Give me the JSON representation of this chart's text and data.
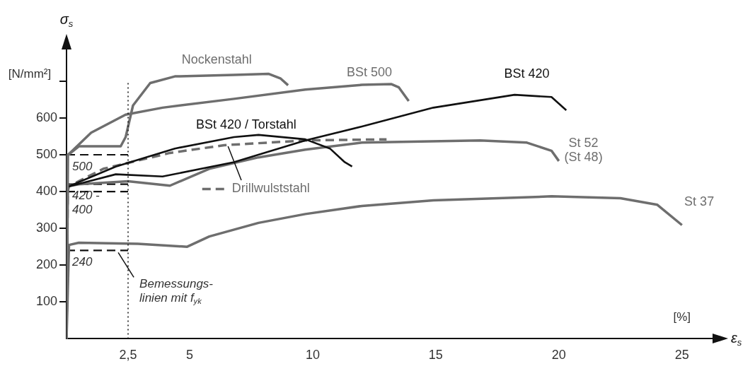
{
  "chart_data": {
    "type": "line",
    "xlabel": "ε$_{s}$",
    "ylabel": "σ$_{s}$",
    "xlim": [
      0,
      26.3
    ],
    "ylim": [
      0,
      790
    ],
    "xticks": [
      {
        "value": 2.5,
        "label": "2,5"
      },
      5,
      10,
      15,
      20,
      25
    ],
    "yticks": [
      100,
      200,
      300,
      400,
      500,
      600,
      {
        "value": 700,
        "label": null
      }
    ],
    "series": [
      {
        "name": "Nockenstahl",
        "color": "#6e6e6e",
        "x": [
          0,
          0.05,
          0.5,
          2.2,
          2.4,
          2.7,
          3.4,
          4.4,
          6.8,
          8.2,
          8.7,
          9
        ],
        "values": [
          0,
          499,
          523,
          523,
          548,
          634,
          695,
          713,
          717,
          720,
          707,
          689
        ]
      },
      {
        "name": "BSt 500",
        "color": "#6e6e6e",
        "x": [
          0,
          0.05,
          1,
          2.4,
          3.9,
          6.8,
          9.7,
          12,
          13.2,
          13.5,
          13.9
        ],
        "values": [
          0,
          499,
          560,
          609,
          628,
          652,
          677,
          690,
          692,
          683,
          646
        ]
      },
      {
        "name": "BSt 420",
        "color": "#111111",
        "x": [
          0,
          0.05,
          2,
          3.9,
          6.8,
          9.7,
          12,
          14.9,
          18.2,
          19.7,
          20.3
        ],
        "values": [
          0,
          413,
          447,
          441,
          480,
          539,
          577,
          628,
          663,
          657,
          621
        ]
      },
      {
        "name": "BSt 420 / Torstahl",
        "color": "#111111",
        "x": [
          0,
          0.05,
          2,
          4.4,
          6.8,
          7.8,
          9.7,
          10.7,
          11.3,
          11.6
        ],
        "values": [
          0,
          413,
          468,
          517,
          548,
          554,
          542,
          517,
          480,
          468
        ]
      },
      {
        "name": "Drillwulststahl",
        "color": "#6e6e6e",
        "line_style": "dashed",
        "x": [
          0,
          0.05,
          1.5,
          4.2,
          6.4,
          9.7,
          13
        ],
        "values": [
          0,
          413,
          462,
          505,
          526,
          539,
          542
        ]
      },
      {
        "name": "St 52\n(St 48)",
        "color": "#6e6e6e",
        "x": [
          0,
          0.05,
          0.1,
          0.5,
          2.5,
          4.2,
          5.8,
          7.8,
          9.7,
          12,
          16.8,
          18.7,
          19.7,
          20
        ],
        "values": [
          0,
          400,
          415,
          420,
          428,
          416,
          462,
          493,
          514,
          533,
          539,
          533,
          511,
          483
        ]
      },
      {
        "name": "St 37",
        "color": "#6e6e6e",
        "x": [
          0,
          0.1,
          0.5,
          2.9,
          4.9,
          5.8,
          7.8,
          9.7,
          12,
          14.9,
          19.7,
          22.5,
          24,
          25
        ],
        "values": [
          0,
          255,
          261,
          258,
          250,
          278,
          315,
          339,
          361,
          376,
          387,
          382,
          364,
          309
        ]
      },
      {
        "color": "#111111",
        "line_style": "dashed",
        "x": [
          0,
          2.5
        ],
        "values": [
          500,
          500
        ]
      },
      {
        "color": "#111111",
        "line_style": "dashed",
        "x": [
          0,
          2.5
        ],
        "values": [
          420,
          420
        ]
      },
      {
        "color": "#111111",
        "line_style": "dashed",
        "x": [
          0,
          2.5
        ],
        "values": [
          400,
          400
        ]
      },
      {
        "color": "#111111",
        "line_style": "dashed",
        "x": [
          0,
          2.5
        ],
        "values": [
          240,
          240
        ]
      }
    ],
    "ref_lines": [
      {
        "axis": "x",
        "value": 2.5,
        "color": "#111111",
        "line_style": "dotted"
      }
    ],
    "annotations": [
      {
        "text": "500",
        "y": 500
      },
      {
        "text": "420 -\n400",
        "y": 420
      },
      {
        "text": "240",
        "y": 240
      },
      "[N/mm²]",
      "[%]",
      {
        "text": "Bemessungs-\nlinien mit f$_{yk}$",
        "x": 2.1,
        "y": 240
      }
    ]
  }
}
